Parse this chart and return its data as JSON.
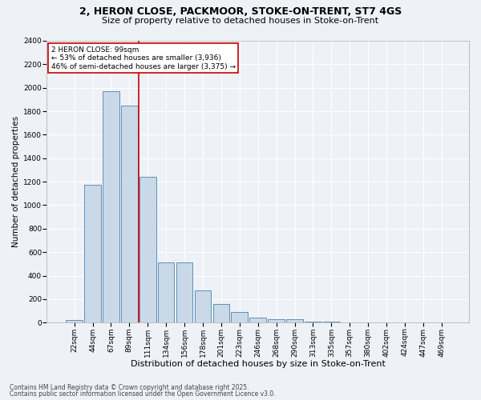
{
  "title1": "2, HERON CLOSE, PACKMOOR, STOKE-ON-TRENT, ST7 4GS",
  "title2": "Size of property relative to detached houses in Stoke-on-Trent",
  "xlabel": "Distribution of detached houses by size in Stoke-on-Trent",
  "ylabel": "Number of detached properties",
  "categories": [
    "22sqm",
    "44sqm",
    "67sqm",
    "89sqm",
    "111sqm",
    "134sqm",
    "156sqm",
    "178sqm",
    "201sqm",
    "223sqm",
    "246sqm",
    "268sqm",
    "290sqm",
    "313sqm",
    "335sqm",
    "357sqm",
    "380sqm",
    "402sqm",
    "424sqm",
    "447sqm",
    "469sqm"
  ],
  "values": [
    25,
    1175,
    1970,
    1850,
    1245,
    510,
    510,
    275,
    155,
    90,
    45,
    30,
    28,
    10,
    5,
    4,
    3,
    2,
    2,
    1,
    1
  ],
  "bar_color": "#c9d9e8",
  "bar_edge_color": "#6090b8",
  "vline_x": 3.5,
  "vline_color": "#cc0000",
  "annotation_title": "2 HERON CLOSE: 99sqm",
  "annotation_line1": "← 53% of detached houses are smaller (3,936)",
  "annotation_line2": "46% of semi-detached houses are larger (3,375) →",
  "annotation_box_color": "#cc0000",
  "ylim": [
    0,
    2400
  ],
  "yticks": [
    0,
    200,
    400,
    600,
    800,
    1000,
    1200,
    1400,
    1600,
    1800,
    2000,
    2200,
    2400
  ],
  "footer1": "Contains HM Land Registry data © Crown copyright and database right 2025.",
  "footer2": "Contains public sector information licensed under the Open Government Licence v3.0.",
  "bg_color": "#eef2f7",
  "grid_color": "#ffffff",
  "title1_fontsize": 9,
  "title2_fontsize": 8,
  "xlabel_fontsize": 8,
  "ylabel_fontsize": 7.5,
  "tick_fontsize": 6.5,
  "annot_fontsize": 6.5,
  "footer_fontsize": 5.5
}
